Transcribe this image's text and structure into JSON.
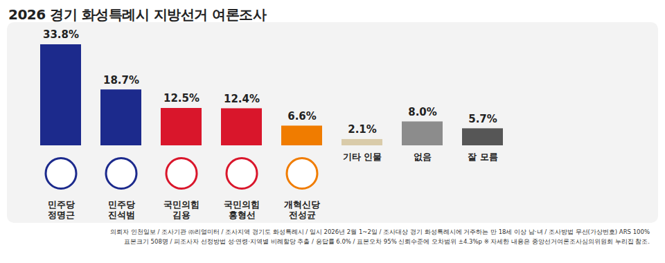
{
  "chart_data": {
    "type": "bar",
    "title": "2026 경기 화성특례시 지방선거 여론조사",
    "categories": [
      "민주당\n정명근",
      "민주당\n진석범",
      "국민의힘\n김용",
      "국민의힘\n홍형선",
      "개혁신당\n전성균",
      "기타 인물",
      "없음",
      "잘 모름"
    ],
    "values": [
      33.8,
      18.7,
      12.5,
      12.4,
      6.6,
      2.1,
      8.0,
      5.7
    ],
    "value_labels": [
      "33.8%",
      "18.7%",
      "12.5%",
      "12.4%",
      "6.6%",
      "2.1%",
      "8.0%",
      "5.7%"
    ],
    "colors": [
      "#1c2a8c",
      "#1c2a8c",
      "#d9162b",
      "#d9162b",
      "#f07c00",
      "#d9cba9",
      "#8c8c8c",
      "#565656"
    ],
    "data_labels": true,
    "tick_labels": false,
    "grid": false,
    "notes": [
      "의뢰자 인천일보 / 조사기관 ㈜리얼미터 / 조사지역 경기도 화성특례시 / 일시 2026년 2월 1~2일 / 조사대상 경기 화성특례시에 거주하는 만 18세 이상 남·녀 / 조사방법 무선(가상번호) ARS 100%",
      "표본크기 508명 / 피조사자 선정방법 성·연령·지역별 비례할당 추출 / 응답률 6.0% / 표본오차 95% 신뢰수준에 오차범위 ±4.3%p ※ 자세한 내용은 중앙선거여론조사심의위원회 누리집 참조."
    ]
  }
}
